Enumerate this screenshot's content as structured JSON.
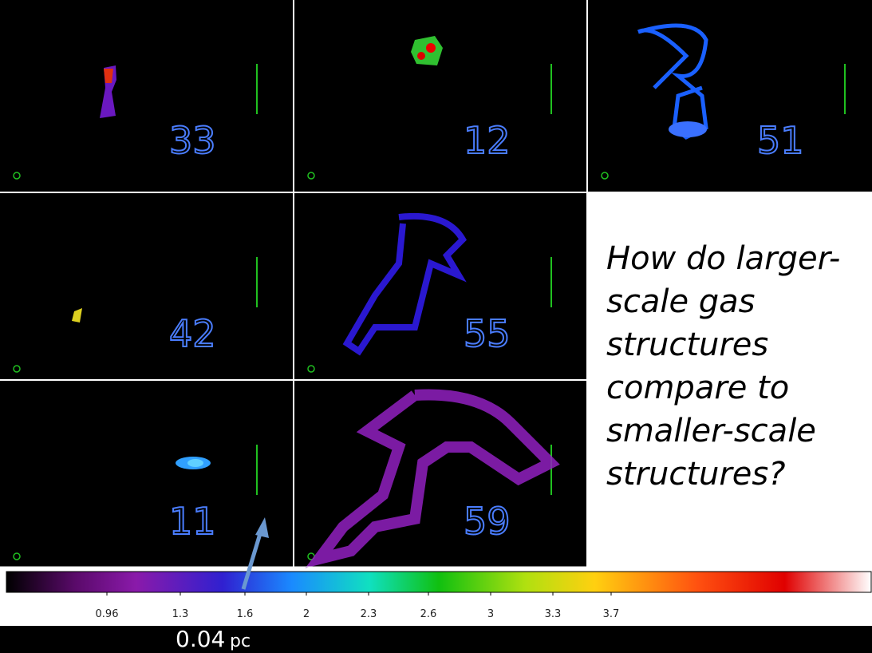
{
  "panels": [
    {
      "label": "33"
    },
    {
      "label": "12"
    },
    {
      "label": "51"
    },
    {
      "label": "42"
    },
    {
      "label": "55"
    },
    {
      "label": "11"
    },
    {
      "label": "59"
    }
  ],
  "question": {
    "lines": [
      "How do larger-",
      "scale gas",
      "structures",
      "compare to",
      "smaller-scale",
      "structures?"
    ]
  },
  "colorbar": {
    "ticks": [
      "0.96",
      "1.3",
      "1.6",
      "2",
      "2.3",
      "2.6",
      "3",
      "3.3",
      "3.7"
    ]
  },
  "scale_bar": {
    "value": "0.04",
    "unit": "pc"
  }
}
